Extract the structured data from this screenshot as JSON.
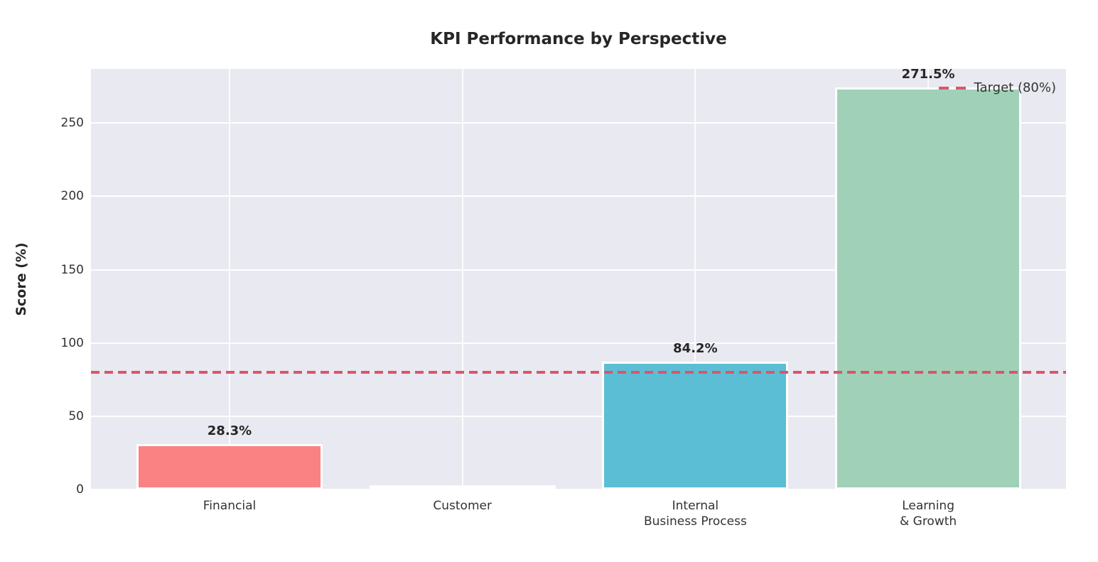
{
  "chart": {
    "title": "KPI Performance by Perspective",
    "ylabel": "Score (%)",
    "legend_label": "Target (80%)"
  },
  "chart_data": {
    "type": "bar",
    "title": "KPI Performance by Perspective",
    "xlabel": "",
    "ylabel": "Score (%)",
    "categories": [
      "Financial",
      "Customer",
      "Internal\nBusiness Process",
      "Learning\n& Growth"
    ],
    "values": [
      28.3,
      0.0,
      84.2,
      271.5
    ],
    "bar_labels": [
      "28.3%",
      "",
      "84.2%",
      "271.5%"
    ],
    "bar_colors": [
      "#FA8282",
      "#FFFFFF",
      "#5CBED4",
      "#A0D1B8"
    ],
    "bar_edge_color": "#FFFFFF",
    "yticks": [
      0,
      50,
      100,
      150,
      200,
      250
    ],
    "ylim": [
      0,
      287
    ],
    "grid": true,
    "plot_background": "#E9E9F1",
    "gridline_color": "#FFFFFF",
    "target_line": {
      "value": 80,
      "color": "#D9566A",
      "style": "dashed",
      "label": "Target (80%)"
    },
    "legend_position": "upper right",
    "text_color": "#262626"
  }
}
